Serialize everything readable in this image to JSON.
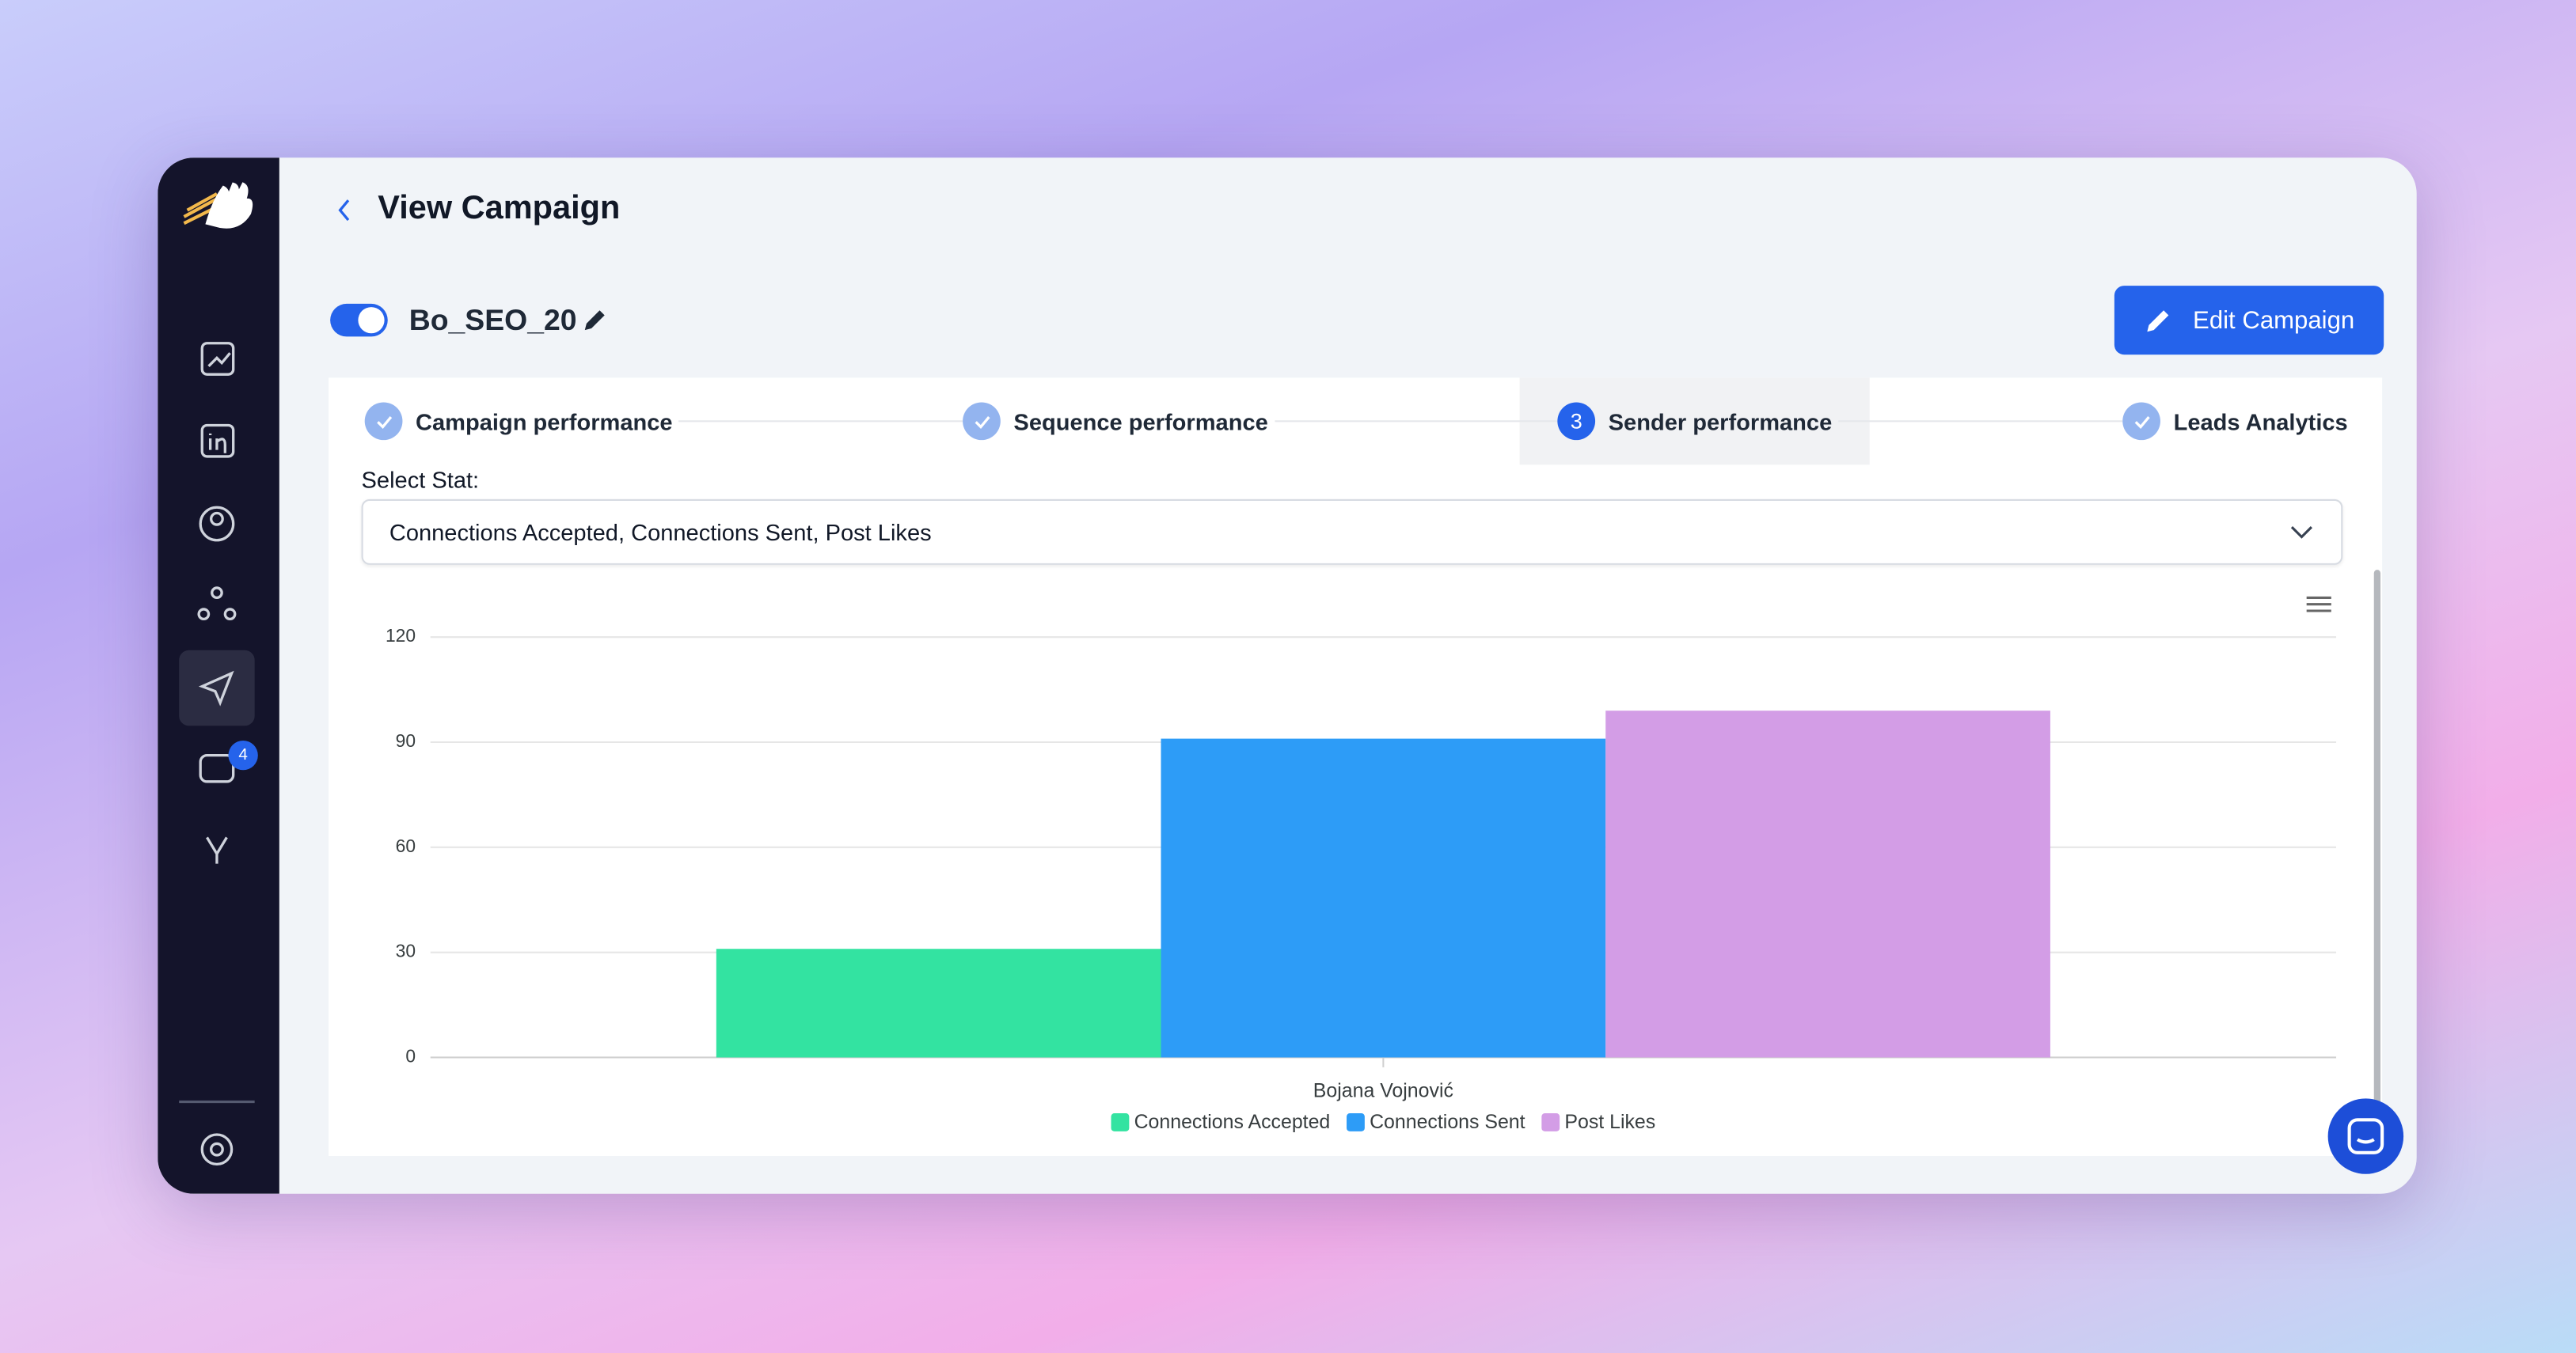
{
  "header": {
    "title": "View Campaign"
  },
  "campaign": {
    "name": "Bo_SEO_20",
    "edit_button": "Edit Campaign"
  },
  "sidebar": {
    "badge": 4
  },
  "tabs": [
    {
      "label": "Campaign performance"
    },
    {
      "label": "Sequence performance"
    },
    {
      "step": 3,
      "label": "Sender performance"
    },
    {
      "label": "Leads Analytics"
    }
  ],
  "select": {
    "label": "Select Stat:",
    "value": "Connections Accepted, Connections Sent, Post Likes"
  },
  "chart_data": {
    "type": "bar",
    "categories": [
      "Bojana Vojnović"
    ],
    "series": [
      {
        "name": "Connections Accepted",
        "color": "#33e3a1",
        "values": [
          31
        ]
      },
      {
        "name": "Connections Sent",
        "color": "#2d9cf7",
        "values": [
          91
        ]
      },
      {
        "name": "Post Likes",
        "color": "#d39de6",
        "values": [
          99
        ]
      }
    ],
    "ylim": [
      0,
      120
    ],
    "yticks": [
      0,
      30,
      60,
      90,
      120
    ],
    "grid": true,
    "legend": "bottom"
  }
}
